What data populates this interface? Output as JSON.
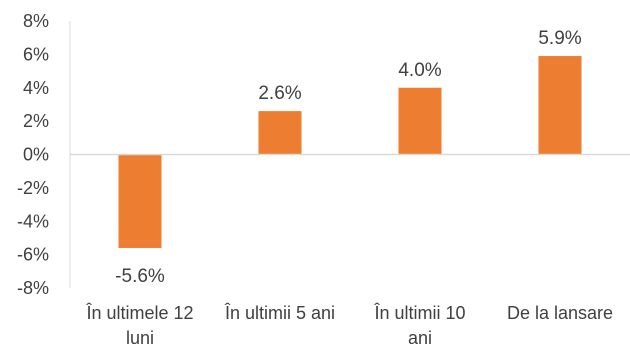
{
  "chart_data": {
    "type": "bar",
    "categories": [
      [
        "În ultimele 12",
        "luni"
      ],
      [
        "În ultimii 5 ani"
      ],
      [
        "În ultimii 10",
        "ani"
      ],
      [
        "De la lansare"
      ]
    ],
    "values": [
      -5.6,
      2.6,
      4.0,
      5.9
    ],
    "data_labels": [
      "-5.6%",
      "2.6%",
      "4.0%",
      "5.9%"
    ],
    "yticks": [
      8,
      6,
      4,
      2,
      0,
      -2,
      -4,
      -6,
      -8
    ],
    "ytick_labels": [
      "8%",
      "6%",
      "4%",
      "2%",
      "0%",
      "-2%",
      "-4%",
      "-6%",
      "-8%"
    ],
    "ylim": [
      -8,
      8
    ],
    "grid": false,
    "legend": "none",
    "bar_color": "#ED7D31",
    "axis_color": "#D9D9D9",
    "text_color": "#404040"
  }
}
